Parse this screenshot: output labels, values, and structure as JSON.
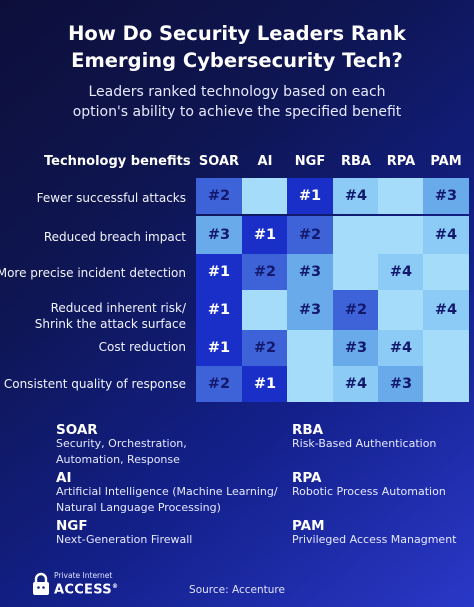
{
  "header": {
    "title_line1": "How Do Security Leaders Rank",
    "title_line2": "Emerging Cybersecurity Tech?",
    "subtitle_line1": "Leaders ranked technology based on each",
    "subtitle_line2": "option's ability to achieve the specified benefit"
  },
  "chart_data": {
    "type": "table",
    "row_header": "Technology benefits",
    "columns": [
      "SOAR",
      "AI",
      "NGF",
      "RBA",
      "RPA",
      "PAM"
    ],
    "rows": [
      {
        "label": [
          "Fewer successful attacks"
        ],
        "ranks": [
          "#2",
          "",
          "#1",
          "#4",
          "",
          "#3"
        ]
      },
      {
        "label": [
          "Reduced breach impact"
        ],
        "ranks": [
          "#3",
          "#1",
          "#2",
          "",
          "",
          "#4"
        ]
      },
      {
        "label": [
          "More precise incident detection"
        ],
        "ranks": [
          "#1",
          "#2",
          "#3",
          "",
          "#4",
          ""
        ]
      },
      {
        "label": [
          "Reduced inherent risk/",
          "Shrink the attack surface"
        ],
        "ranks": [
          "#1",
          "",
          "#3",
          "#2",
          "",
          "#4"
        ]
      },
      {
        "label": [
          "Cost reduction"
        ],
        "ranks": [
          "#1",
          "#2",
          "",
          "#3",
          "#4",
          ""
        ]
      },
      {
        "label": [
          "Consistent quality of response"
        ],
        "ranks": [
          "#2",
          "#1",
          "",
          "#4",
          "#3",
          ""
        ]
      }
    ],
    "colors": {
      "#1": "#1a2ec8",
      "#2": "#3e62d8",
      "#3": "#69aaea",
      "#4": "#8bcbf6",
      "none": "#a4dcfa"
    }
  },
  "legend": [
    {
      "abbr": "SOAR",
      "definition": [
        "Security, Orchestration,",
        "Automation, Response"
      ]
    },
    {
      "abbr": "AI",
      "definition": [
        "Artificial Intelligence (Machine Learning/",
        "Natural Language Processing)"
      ]
    },
    {
      "abbr": "NGF",
      "definition": [
        "Next-Generation Firewall"
      ]
    },
    {
      "abbr": "RBA",
      "definition": [
        "Risk-Based Authentication"
      ]
    },
    {
      "abbr": "RPA",
      "definition": [
        "Robotic Process Automation"
      ]
    },
    {
      "abbr": "PAM",
      "definition": [
        "Privileged Access Managment"
      ]
    }
  ],
  "footer": {
    "logo_small": "Private Internet",
    "logo_big": "ACCESS",
    "logo_mark": "®",
    "logo_icon": "lock-icon",
    "source": "Source: Accenture"
  }
}
